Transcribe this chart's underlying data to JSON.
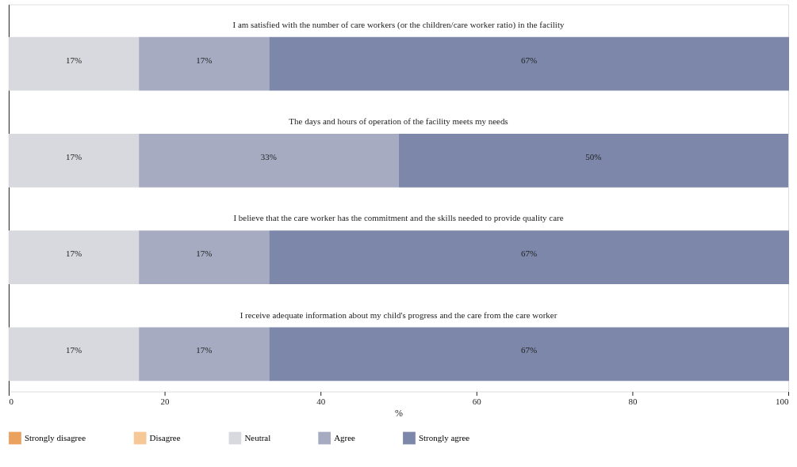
{
  "chart_data": {
    "type": "bar",
    "orientation": "horizontal",
    "stacked": true,
    "xlabel": "%",
    "categories": [
      "I am satisfied with the number of care workers (or the children/care worker ratio) in the facility",
      "The days and hours of operation of the facility meets my needs",
      "I believe that the care worker has the commitment and the skills needed to provide quality care",
      "I receive adequate information about my child's progress and the care from the care worker"
    ],
    "series": [
      {
        "name": "Strongly disagree",
        "color": "#eba25e",
        "values": [
          0,
          0,
          0,
          0
        ],
        "value_labels": [
          null,
          null,
          null,
          null
        ]
      },
      {
        "name": "Disagree",
        "color": "#f6c897",
        "values": [
          0,
          0,
          0,
          0
        ],
        "value_labels": [
          null,
          null,
          null,
          null
        ]
      },
      {
        "name": "Neutral",
        "color": "#d8d9de",
        "values": [
          16.7,
          16.7,
          16.7,
          16.7
        ],
        "value_labels": [
          "17%",
          "17%",
          "17%",
          "17%"
        ]
      },
      {
        "name": "Agree",
        "color": "#a7abc2",
        "values": [
          16.7,
          33.3,
          16.7,
          16.7
        ],
        "value_labels": [
          "17%",
          "33%",
          "17%",
          "17%"
        ]
      },
      {
        "name": "Strongly agree",
        "color": "#7c87a9",
        "values": [
          66.7,
          50.0,
          66.7,
          66.7
        ],
        "value_labels": [
          "67%",
          "50%",
          "67%",
          "67%"
        ]
      }
    ],
    "xlim": [
      0,
      100
    ],
    "xticks": [
      0,
      20,
      40,
      60,
      80,
      100
    ],
    "grid": false,
    "legend": "bottom"
  }
}
